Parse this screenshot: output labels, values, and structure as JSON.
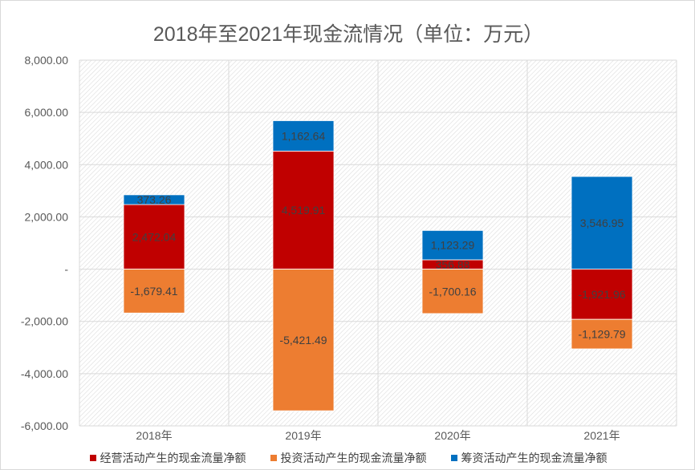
{
  "chart_data": {
    "type": "bar",
    "stacked": true,
    "title": "2018年至2021年现金流情况（单位：万元）",
    "categories": [
      "2018年",
      "2019年",
      "2020年",
      "2021年"
    ],
    "series": [
      {
        "name": "经营活动产生的现金流量净额",
        "color": "#c00000",
        "values": [
          2472.04,
          4519.91,
          356.88,
          -1921.96
        ],
        "labels": [
          "2,472.04",
          "4,519.91",
          "356.88",
          "-1,921.96"
        ]
      },
      {
        "name": "投资活动产生的现金流量净额",
        "color": "#ed7d31",
        "values": [
          -1679.41,
          -5421.49,
          -1700.16,
          -1129.79
        ],
        "labels": [
          "-1,679.41",
          "-5,421.49",
          "-1,700.16",
          "-1,129.79"
        ]
      },
      {
        "name": "筹资活动产生的现金流量净额",
        "color": "#0070c0",
        "values": [
          373.26,
          1162.64,
          1123.29,
          3546.95
        ],
        "labels": [
          "373.26",
          "1,162.64",
          "1,123.29",
          "3,546.95"
        ]
      }
    ],
    "ylim": [
      -6000,
      8000
    ],
    "yticks": [
      8000,
      6000,
      4000,
      2000,
      0,
      -2000,
      -4000,
      -6000
    ],
    "ytick_labels": [
      "8,000.00",
      "6,000.00",
      "4,000.00",
      "2,000.00",
      "-",
      "-2,000.00",
      "-4,000.00",
      "-6,000.00"
    ],
    "grid": true,
    "legend": "bottom"
  }
}
